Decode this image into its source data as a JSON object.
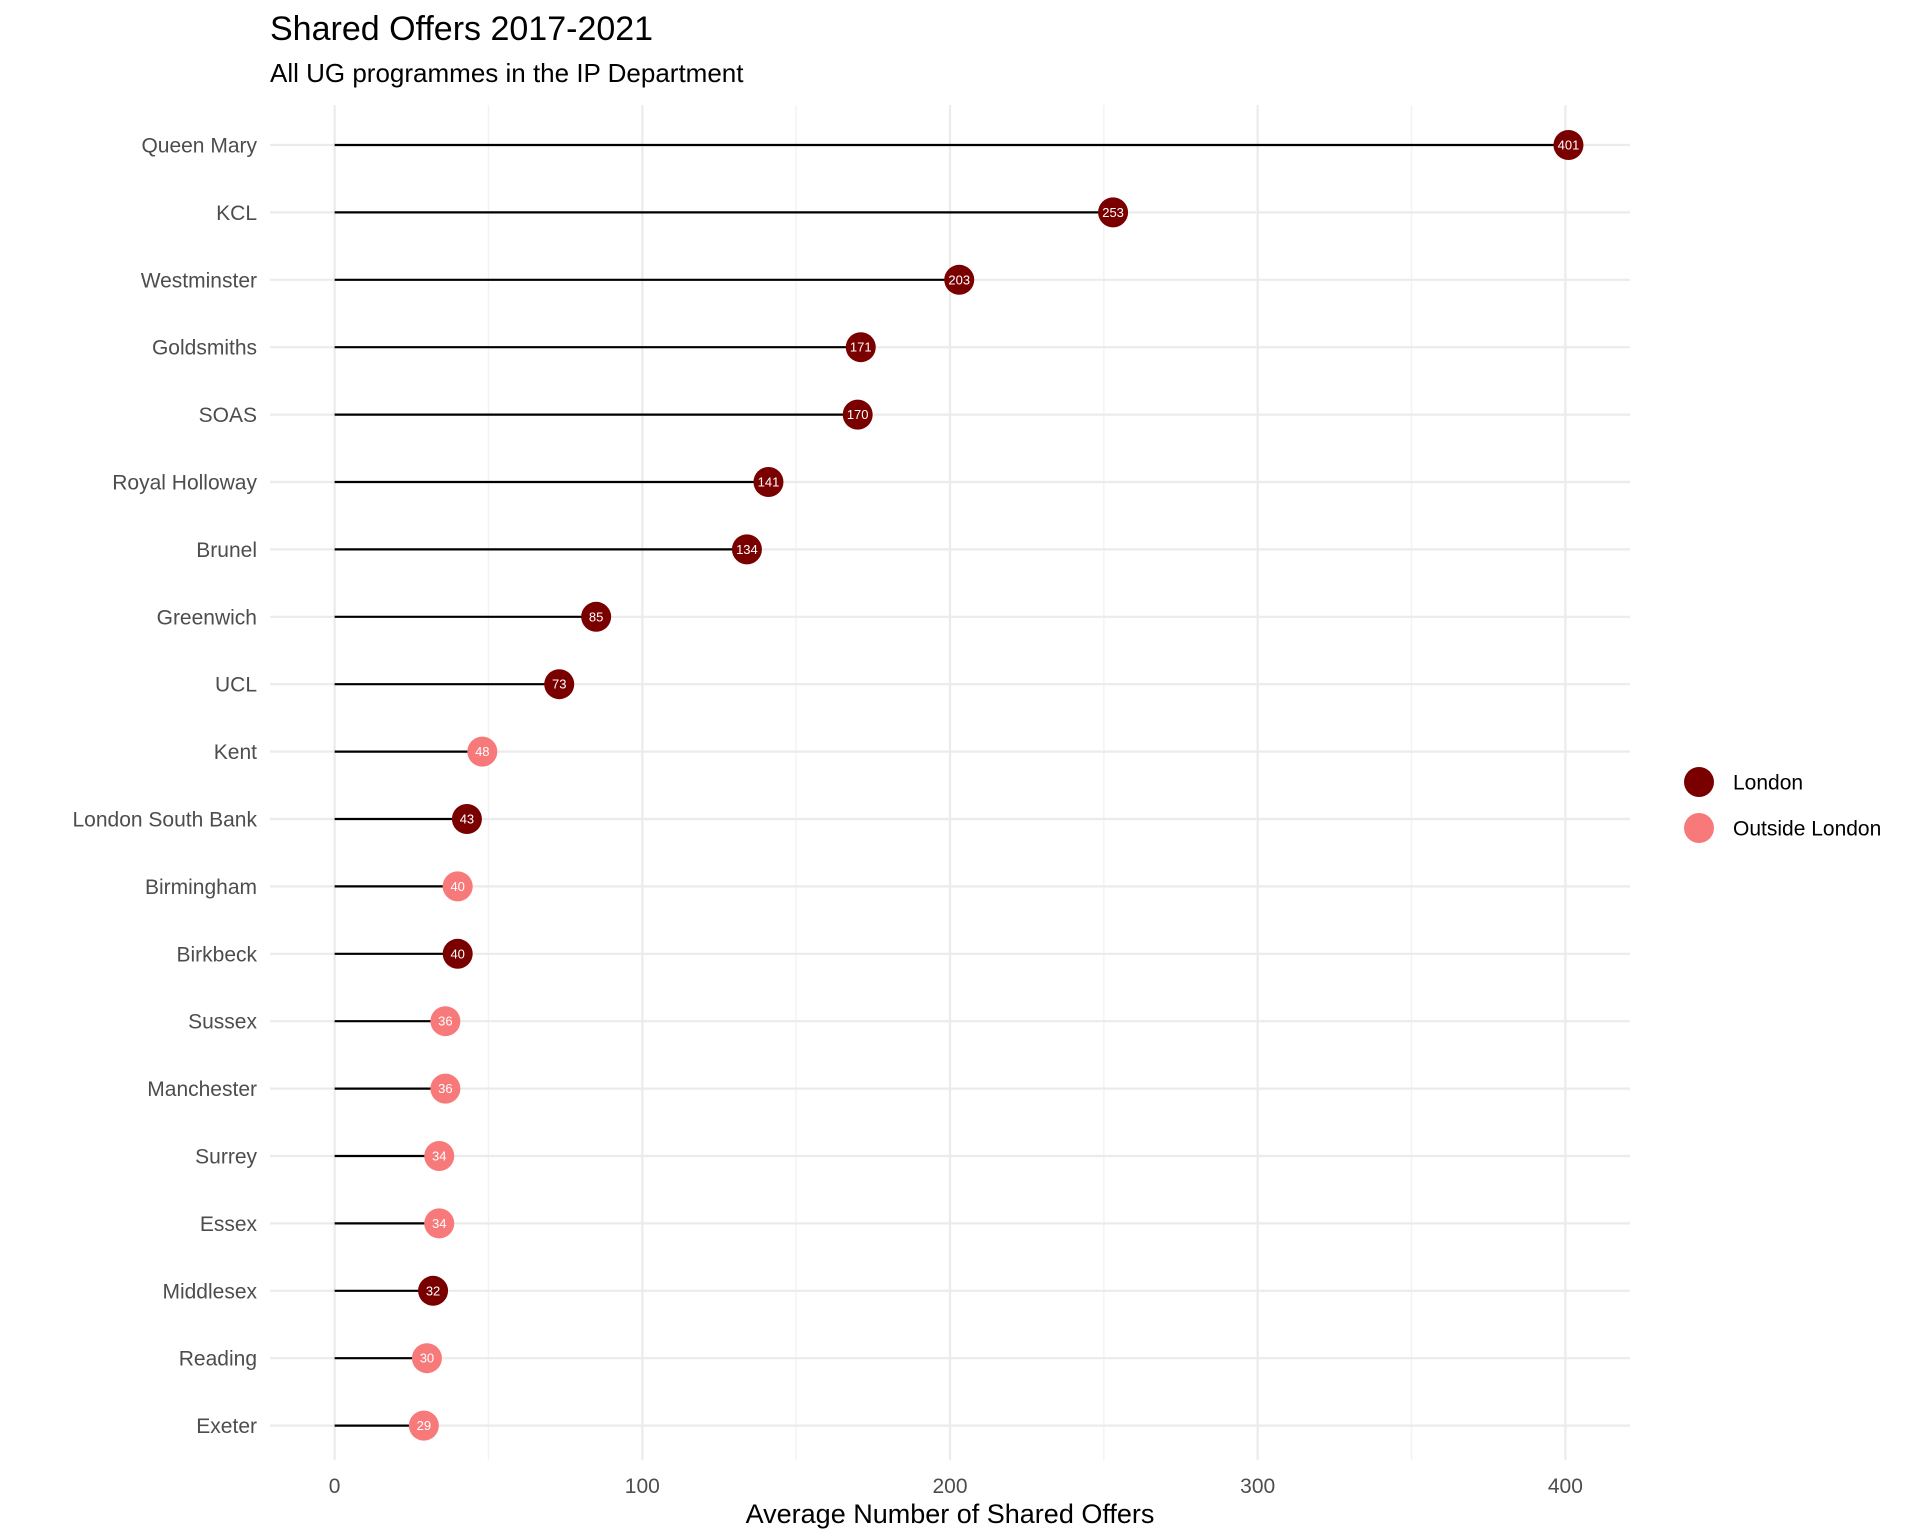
{
  "chart_data": {
    "type": "lollipop",
    "title": "Shared Offers 2017-2021",
    "subtitle": "All UG programmes in the IP Department",
    "xlabel": "Average Number of Shared Offers",
    "ylabel": "",
    "xlim": [
      -21,
      421
    ],
    "x_ticks": [
      0,
      100,
      200,
      300,
      400
    ],
    "grid": true,
    "legend_position": "right",
    "legend": [
      {
        "name": "London",
        "color": "#7a0000"
      },
      {
        "name": "Outside London",
        "color": "#f8797a"
      }
    ],
    "categories": [
      "Queen Mary",
      "KCL",
      "Westminster",
      "Goldsmiths",
      "SOAS",
      "Royal Holloway",
      "Brunel",
      "Greenwich",
      "UCL",
      "Kent",
      "London South Bank",
      "Birmingham",
      "Birkbeck",
      "Sussex",
      "Manchester",
      "Surrey",
      "Essex",
      "Middlesex",
      "Reading",
      "Exeter"
    ],
    "values": [
      401,
      253,
      203,
      171,
      170,
      141,
      134,
      85,
      73,
      48,
      43,
      40,
      40,
      36,
      36,
      34,
      34,
      32,
      30,
      29
    ],
    "groups": [
      "London",
      "London",
      "London",
      "London",
      "London",
      "London",
      "London",
      "London",
      "London",
      "Outside London",
      "London",
      "Outside London",
      "London",
      "Outside London",
      "Outside London",
      "Outside London",
      "Outside London",
      "London",
      "Outside London",
      "Outside London"
    ]
  }
}
